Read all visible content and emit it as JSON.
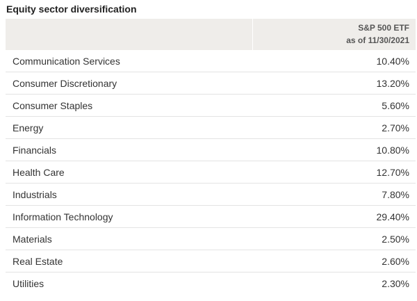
{
  "title": "Equity sector diversification",
  "header": {
    "column_sector": "",
    "column_etf_line1": "S&P 500 ETF",
    "column_etf_line2": "as of 11/30/2021"
  },
  "rows": [
    {
      "sector": "Communication Services",
      "value": "10.40%"
    },
    {
      "sector": "Consumer Discretionary",
      "value": "13.20%"
    },
    {
      "sector": "Consumer Staples",
      "value": "5.60%"
    },
    {
      "sector": "Energy",
      "value": "2.70%"
    },
    {
      "sector": "Financials",
      "value": "10.80%"
    },
    {
      "sector": "Health Care",
      "value": "12.70%"
    },
    {
      "sector": "Industrials",
      "value": "7.80%"
    },
    {
      "sector": "Information Technology",
      "value": "29.40%"
    },
    {
      "sector": "Materials",
      "value": "2.50%"
    },
    {
      "sector": "Real Estate",
      "value": "2.60%"
    },
    {
      "sector": "Utilities",
      "value": "2.30%"
    }
  ],
  "colors": {
    "header_bg": "#efedea",
    "row_divider": "#e3e3e3",
    "text": "#333333"
  }
}
